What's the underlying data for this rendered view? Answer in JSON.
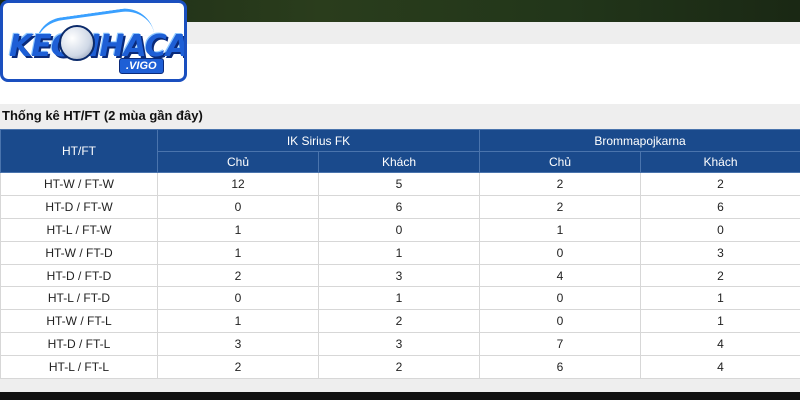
{
  "logo": {
    "text": "KEONHACAI",
    "badge": ".VIGO"
  },
  "section_title": "Thống kê HT/FT (2 mùa gần đây)",
  "table": {
    "htft_header": "HT/FT",
    "teams": [
      "IK Sirius FK",
      "Brommapojkarna"
    ],
    "sub_headers": [
      "Chủ",
      "Khách",
      "Chủ",
      "Khách"
    ],
    "rows": [
      {
        "label": "HT-W / FT-W",
        "values": [
          "12",
          "5",
          "2",
          "2"
        ]
      },
      {
        "label": "HT-D / FT-W",
        "values": [
          "0",
          "6",
          "2",
          "6"
        ]
      },
      {
        "label": "HT-L / FT-W",
        "values": [
          "1",
          "0",
          "1",
          "0"
        ]
      },
      {
        "label": "HT-W / FT-D",
        "values": [
          "1",
          "1",
          "0",
          "3"
        ]
      },
      {
        "label": "HT-D / FT-D",
        "values": [
          "2",
          "3",
          "4",
          "2"
        ]
      },
      {
        "label": "HT-L / FT-D",
        "values": [
          "0",
          "1",
          "0",
          "1"
        ]
      },
      {
        "label": "HT-W / FT-L",
        "values": [
          "1",
          "2",
          "0",
          "1"
        ]
      },
      {
        "label": "HT-D / FT-L",
        "values": [
          "3",
          "3",
          "7",
          "4"
        ]
      },
      {
        "label": "HT-L / FT-L",
        "values": [
          "2",
          "2",
          "6",
          "4"
        ]
      }
    ]
  },
  "colors": {
    "header_bg": "#1a4a8c",
    "logo_blue": "#1e5fd6"
  }
}
